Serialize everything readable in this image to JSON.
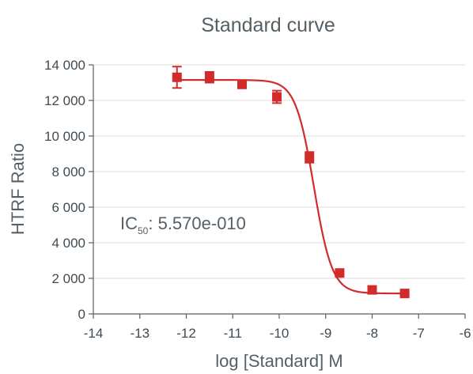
{
  "chart_data": {
    "type": "scatter",
    "title": "Standard curve",
    "xlabel": "log [Standard] M",
    "ylabel": "HTRF Ratio",
    "xlim": [
      -14,
      -6
    ],
    "ylim": [
      0,
      14000
    ],
    "x_ticks": [
      -14,
      -13,
      -12,
      -11,
      -10,
      -9,
      -8,
      -7,
      -6
    ],
    "x_tick_labels": [
      "-14",
      "-13",
      "-12",
      "-11",
      "-10",
      "-9",
      "-8",
      "-7",
      "-6"
    ],
    "y_ticks": [
      0,
      2000,
      4000,
      6000,
      8000,
      10000,
      12000,
      14000
    ],
    "y_tick_labels": [
      "0",
      "2 000",
      "4 000",
      "6 000",
      "8 000",
      "10 000",
      "12 000",
      "14 000"
    ],
    "grid": "horizontal",
    "series": [
      {
        "points": [
          {
            "x": -12.2,
            "y": 13300,
            "err": 600
          },
          {
            "x": -11.5,
            "y": 13300,
            "err": 300
          },
          {
            "x": -10.8,
            "y": 12900,
            "err": 150
          },
          {
            "x": -10.05,
            "y": 12200,
            "err": 350
          },
          {
            "x": -9.35,
            "y": 8800,
            "err": 300
          },
          {
            "x": -8.7,
            "y": 2300,
            "err": 100
          },
          {
            "x": -8.0,
            "y": 1350,
            "err": 100
          },
          {
            "x": -7.3,
            "y": 1150,
            "err": 80
          }
        ],
        "fit": {
          "model": "4PL",
          "top": 13150,
          "bottom": 1150,
          "log_ic50": -9.254,
          "hill": 2.2,
          "x_range": [
            -12.2,
            -7.3
          ]
        }
      }
    ],
    "annotation": {
      "prefix": "IC",
      "subscript": "50",
      "suffix": ": 5.570e-010"
    },
    "colors": {
      "series": "#d22b2b",
      "text": "#555f66",
      "grid": "#dcdcdc"
    }
  }
}
